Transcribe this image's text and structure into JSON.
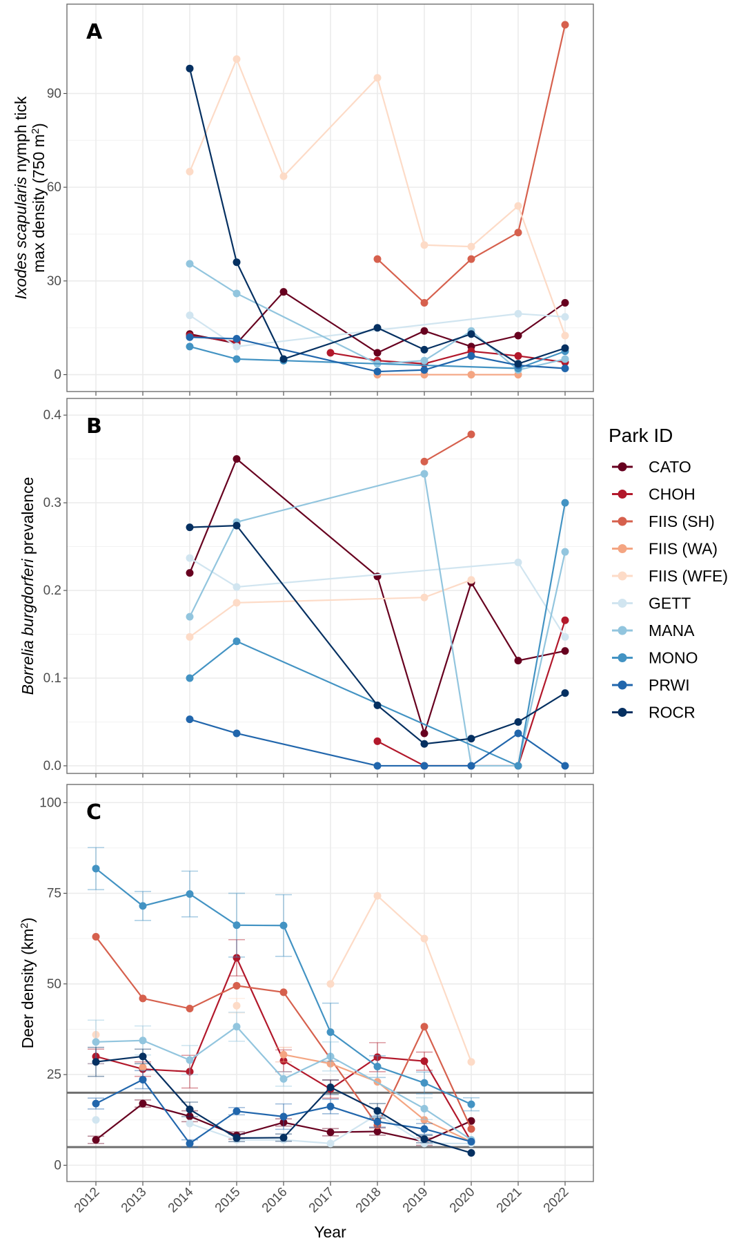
{
  "x_axis": {
    "title": "Year",
    "ticks": [
      2012,
      2013,
      2014,
      2015,
      2016,
      2017,
      2018,
      2019,
      2020,
      2021,
      2022
    ]
  },
  "legend": {
    "title": "Park ID",
    "items": [
      {
        "name": "CATO",
        "color": "#67001F"
      },
      {
        "name": "CHOH",
        "color": "#B2182B"
      },
      {
        "name": "FIIS (SH)",
        "color": "#D6604D"
      },
      {
        "name": "FIIS (WA)",
        "color": "#F4A582"
      },
      {
        "name": "FIIS (WFE)",
        "color": "#FDDBC7"
      },
      {
        "name": "GETT",
        "color": "#D1E5F0"
      },
      {
        "name": "MANA",
        "color": "#92C5DE"
      },
      {
        "name": "MONO",
        "color": "#4393C3"
      },
      {
        "name": "PRWI",
        "color": "#2166AC"
      },
      {
        "name": "ROCR",
        "color": "#053061"
      }
    ]
  },
  "chart_data": [
    {
      "type": "line",
      "panel_label": "A",
      "ylabel_line1_italic": "Ixodes scapularis",
      "ylabel_line1_rest": " nymph tick",
      "ylabel_line2": "max density (750 m",
      "ylabel_line2_sup": "2",
      "ylabel_line2_end": ")",
      "ylim": [
        -5.4,
        118.6
      ],
      "yticks": [
        0,
        30,
        60,
        90
      ],
      "ytick_labels": [
        "0",
        "30",
        "60",
        "90"
      ],
      "series": {
        "CATO": [
          [
            2014,
            13
          ],
          [
            2015,
            10
          ],
          [
            2016,
            26.5
          ],
          [
            2018,
            7
          ],
          [
            2019,
            14
          ],
          [
            2020,
            9
          ],
          [
            2021,
            12.5
          ],
          [
            2022,
            23
          ]
        ],
        "CHOH": [
          [
            2014,
            12.5
          ],
          [
            2015,
            10.5
          ],
          null,
          [
            2017,
            7
          ],
          [
            2018,
            4.5
          ],
          [
            2019,
            3.5
          ],
          [
            2020,
            7.5
          ],
          [
            2021,
            6
          ],
          [
            2022,
            4
          ]
        ],
        "FIIS (SH)": [
          [
            2018,
            37
          ],
          [
            2019,
            23
          ],
          [
            2020,
            37
          ],
          [
            2021,
            45.5
          ],
          [
            2022,
            112
          ]
        ],
        "FIIS (WA)": [
          [
            2018,
            0
          ],
          [
            2019,
            0
          ],
          [
            2020,
            0
          ],
          [
            2021,
            0
          ]
        ],
        "FIIS (WFE)": [
          [
            2014,
            65
          ],
          [
            2015,
            101
          ],
          [
            2016,
            63.5
          ],
          [
            2018,
            95
          ],
          [
            2019,
            41.5
          ],
          [
            2020,
            41
          ],
          [
            2021,
            54
          ],
          [
            2022,
            12.5
          ]
        ],
        "GETT": [
          [
            2014,
            19
          ],
          [
            2015,
            9
          ],
          [
            2021,
            19.5
          ],
          [
            2022,
            18.5
          ]
        ],
        "MANA": [
          [
            2014,
            35.5
          ],
          [
            2015,
            26
          ],
          [
            2018,
            3.5
          ],
          [
            2019,
            4.5
          ],
          [
            2020,
            14
          ],
          [
            2021,
            1.5
          ],
          [
            2022,
            5
          ]
        ],
        "MONO": [
          [
            2014,
            9
          ],
          [
            2015,
            5
          ],
          [
            2016,
            4.5
          ],
          [
            2021,
            2
          ],
          [
            2022,
            7.5
          ]
        ],
        "PRWI": [
          [
            2014,
            12
          ],
          [
            2015,
            11.5
          ],
          [
            2018,
            1
          ],
          [
            2019,
            1.5
          ],
          [
            2020,
            6
          ],
          [
            2021,
            3
          ],
          [
            2022,
            2
          ]
        ],
        "ROCR": [
          [
            2014,
            98
          ],
          [
            2015,
            36
          ],
          [
            2016,
            5
          ],
          [
            2018,
            15
          ],
          [
            2019,
            8
          ],
          [
            2020,
            13
          ],
          [
            2021,
            3.5
          ],
          [
            2022,
            8.5
          ]
        ]
      }
    },
    {
      "type": "line",
      "panel_label": "B",
      "ylabel_italic": "Borrelia burgdorferi",
      "ylabel_rest": " prevalence",
      "ylim": [
        -0.0087,
        0.419
      ],
      "yticks": [
        0,
        0.1,
        0.2,
        0.3,
        0.4
      ],
      "ytick_labels": [
        "0.0",
        "0.1",
        "0.2",
        "0.3",
        "0.4"
      ],
      "series": {
        "CATO": [
          [
            2014,
            0.22
          ],
          [
            2015,
            0.35
          ],
          [
            2018,
            0.216
          ],
          [
            2019,
            0.037
          ],
          [
            2020,
            0.209
          ],
          [
            2021,
            0.12
          ],
          [
            2022,
            0.131
          ]
        ],
        "CHOH": [
          [
            2018,
            0.028
          ],
          [
            2019,
            0
          ],
          [
            2020,
            0
          ],
          [
            2021,
            0
          ],
          [
            2022,
            0.166
          ]
        ],
        "FIIS (SH)": [
          [
            2019,
            0.347
          ],
          [
            2020,
            0.378
          ]
        ],
        "FIIS (WFE)": [
          [
            2014,
            0.147
          ],
          [
            2015,
            0.186
          ],
          [
            2019,
            0.192
          ],
          [
            2020,
            0.212
          ]
        ],
        "GETT": [
          [
            2014,
            0.237
          ],
          [
            2015,
            0.204
          ],
          [
            2021,
            0.232
          ],
          [
            2022,
            0.147
          ]
        ],
        "MANA": [
          [
            2014,
            0.17
          ],
          [
            2015,
            0.278
          ],
          [
            2019,
            0.333
          ],
          [
            2020,
            0
          ],
          [
            2021,
            0
          ],
          [
            2022,
            0.244
          ]
        ],
        "MONO": [
          [
            2014,
            0.1
          ],
          [
            2015,
            0.142
          ],
          [
            2021,
            0
          ],
          [
            2022,
            0.3
          ]
        ],
        "PRWI": [
          [
            2014,
            0.053
          ],
          [
            2015,
            0.037
          ],
          [
            2018,
            0
          ],
          [
            2019,
            0
          ],
          [
            2020,
            0
          ],
          [
            2021,
            0.037
          ],
          [
            2022,
            0
          ]
        ],
        "ROCR": [
          [
            2014,
            0.272
          ],
          [
            2015,
            0.274
          ],
          [
            2018,
            0.069
          ],
          [
            2019,
            0.025
          ],
          [
            2020,
            0.031
          ],
          [
            2021,
            0.05
          ],
          [
            2022,
            0.083
          ]
        ]
      }
    },
    {
      "type": "line",
      "panel_label": "C",
      "ylabel": "Deer density (km",
      "ylabel_sup": "2",
      "ylabel_end": ")",
      "ylim": [
        -4.5,
        105
      ],
      "yticks": [
        0,
        25,
        50,
        75,
        100
      ],
      "ytick_labels": [
        "0",
        "25",
        "50",
        "75",
        "100"
      ],
      "reference_lines": [
        20,
        5
      ],
      "series": {
        "CATO": [
          [
            2012,
            7,
            1
          ],
          [
            2013,
            17,
            1
          ],
          [
            2014,
            13.5,
            1.5
          ],
          [
            2015,
            8.2,
            1
          ],
          [
            2016,
            11.8,
            1
          ],
          [
            2017,
            9.1,
            1
          ],
          [
            2018,
            9.3,
            1
          ],
          [
            2019,
            6.5,
            1
          ],
          [
            2020,
            12.2,
            0
          ]
        ],
        "CHOH": [
          [
            2012,
            30,
            2
          ],
          [
            2013,
            26.5,
            2
          ],
          [
            2014,
            25.8,
            4.5
          ],
          [
            2015,
            57.2,
            5
          ],
          [
            2016,
            28.8,
            3
          ],
          [
            2017,
            21,
            2.5
          ],
          [
            2018,
            29.8,
            4
          ],
          [
            2019,
            28.7,
            2.5
          ],
          [
            2020,
            6.5,
            0
          ]
        ],
        "FIIS (SH)": [
          [
            2012,
            63,
            0
          ],
          [
            2013,
            46,
            0
          ],
          [
            2014,
            43.2,
            0
          ],
          [
            2015,
            49.5,
            0
          ],
          [
            2016,
            47.7,
            0
          ],
          [
            2018,
            11,
            0
          ],
          [
            2019,
            38.2,
            0
          ],
          [
            2020,
            10,
            0
          ]
        ],
        "FIIS (WA)": [
          [
            2013,
            27,
            0
          ],
          null,
          [
            2016,
            30.5,
            2
          ],
          [
            2017,
            28,
            0
          ],
          [
            2018,
            23,
            0
          ],
          [
            2019,
            12.5,
            0
          ],
          [
            2020,
            6.5,
            0
          ]
        ],
        "FIIS (WFE)": [
          [
            2012,
            36,
            0
          ],
          null,
          [
            2015,
            44,
            2
          ],
          null,
          [
            2017,
            50,
            0
          ],
          [
            2018,
            74.3,
            0
          ],
          [
            2019,
            62.5,
            0
          ],
          [
            2020,
            28.5,
            0
          ]
        ],
        "GETT": [
          [
            2012,
            12.5,
            0
          ],
          null,
          [
            2014,
            11.5,
            0
          ],
          [
            2015,
            7,
            0
          ],
          [
            2016,
            7,
            0
          ],
          [
            2017,
            6,
            0
          ],
          [
            2018,
            14,
            0
          ],
          [
            2019,
            6,
            0
          ],
          [
            2020,
            6,
            0
          ]
        ],
        "MANA": [
          [
            2012,
            34,
            6
          ],
          [
            2013,
            34.4,
            4
          ],
          [
            2014,
            29,
            4
          ],
          [
            2015,
            38.2,
            4
          ],
          [
            2016,
            23.8,
            2
          ],
          [
            2017,
            30,
            4
          ],
          [
            2019,
            15.6,
            3
          ],
          [
            2020,
            7,
            0
          ]
        ],
        "MONO": [
          [
            2012,
            81.8,
            5.8
          ],
          [
            2013,
            71.5,
            4
          ],
          [
            2014,
            74.8,
            6.3
          ],
          [
            2015,
            66.2,
            8.8
          ],
          [
            2016,
            66.1,
            8.5
          ],
          [
            2017,
            36.7,
            8
          ],
          [
            2018,
            27.2,
            3
          ],
          [
            2019,
            22.7,
            3
          ],
          [
            2020,
            16.8,
            1.8
          ]
        ],
        "PRWI": [
          [
            2012,
            17,
            1.5
          ],
          [
            2013,
            23.6,
            2.5
          ],
          [
            2014,
            6,
            1
          ],
          [
            2015,
            14.9,
            1
          ],
          [
            2016,
            13.4,
            3.5
          ],
          [
            2017,
            16.2,
            2
          ],
          [
            2018,
            12,
            1.5
          ],
          [
            2019,
            10,
            1.5
          ],
          [
            2020,
            6.5,
            0
          ]
        ],
        "ROCR": [
          [
            2012,
            28.5,
            4
          ],
          [
            2013,
            30,
            2
          ],
          [
            2014,
            15.4,
            2
          ],
          [
            2015,
            7.5,
            1
          ],
          [
            2016,
            7.6,
            1
          ],
          [
            2017,
            21.5,
            2
          ],
          [
            2018,
            15,
            2
          ],
          [
            2019,
            7.2,
            1
          ],
          [
            2020,
            3.4,
            0
          ]
        ]
      }
    }
  ]
}
